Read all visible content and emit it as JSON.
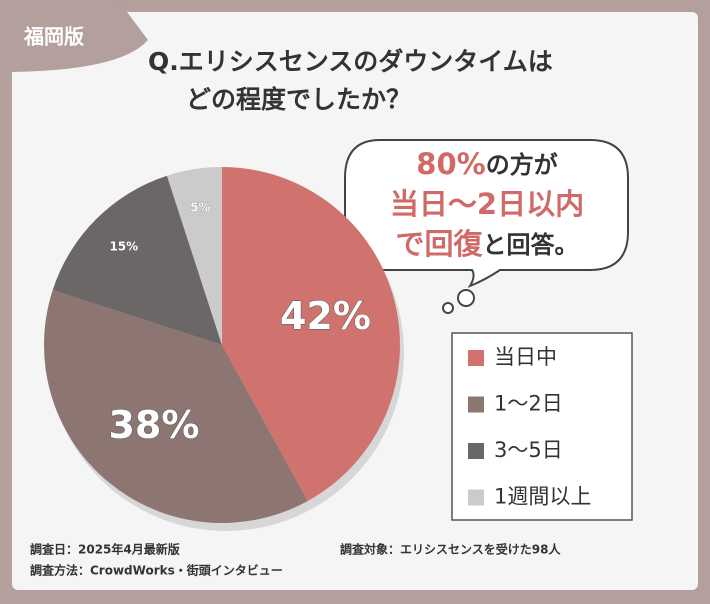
{
  "badge": "福岡版",
  "chart_data": {
    "type": "pie",
    "title": [
      "Q.エリシスセンスのダウンタイムは",
      "どの程度でしたか？"
    ],
    "categories": [
      "当日中",
      "1〜2日",
      "3〜5日",
      "1週間以上"
    ],
    "values": [
      42,
      38,
      15,
      5
    ],
    "value_labels": [
      "42%",
      "38%",
      "15%",
      "5%"
    ],
    "colors": [
      "#d0736e",
      "#8d7572",
      "#6b6767",
      "#cbcbcb"
    ],
    "legend": "right"
  },
  "callout": {
    "highlight_color": "#d06a66",
    "lines": [
      [
        {
          "text": "80%",
          "highlight": true
        },
        {
          "text": "の方が",
          "highlight": false
        }
      ],
      [
        {
          "text": "当日〜2日以内",
          "highlight": true
        }
      ],
      [
        {
          "text": "で回復",
          "highlight": true
        },
        {
          "text": "と回答。",
          "highlight": false
        }
      ]
    ]
  },
  "notes": [
    "調査日：2025年4月最新版",
    "調査方法：CrowdWorks・街頭インタビュー",
    "調査対象：エリシスセンスを受けた98人"
  ]
}
